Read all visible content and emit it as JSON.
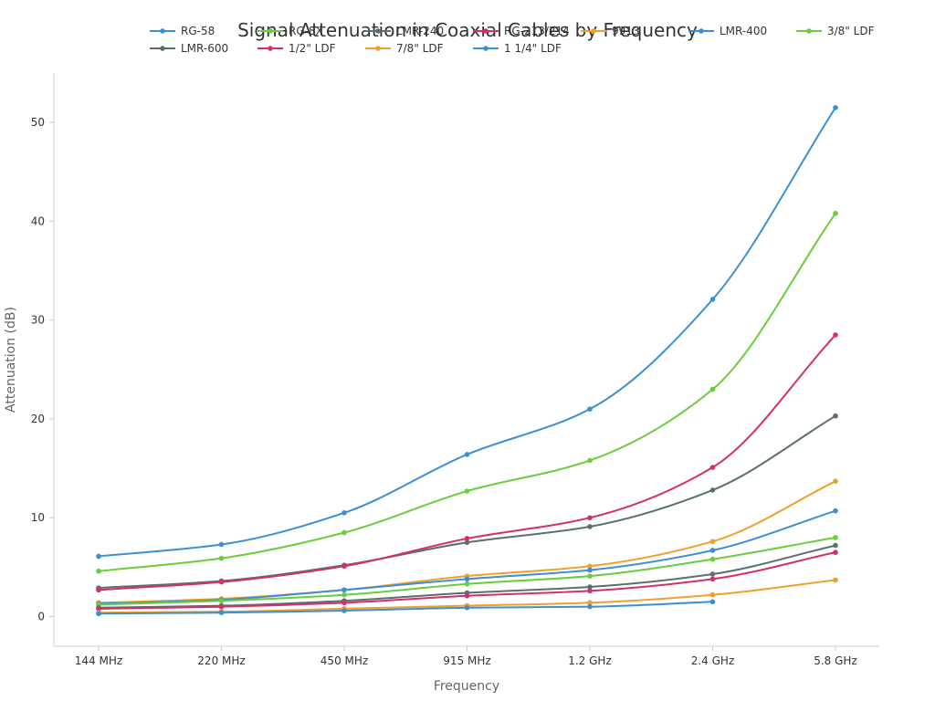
{
  "chart_data": {
    "type": "line",
    "title": "Signal Attenuation in Coaxial Cables by Frequency",
    "xlabel": "Frequency",
    "ylabel": "Attenuation (dB)",
    "categories": [
      "144 MHz",
      "220 MHz",
      "450 MHz",
      "915 MHz",
      "1.2 GHz",
      "2.4 GHz",
      "5.8 GHz"
    ],
    "ylim": [
      -3,
      55
    ],
    "yticks": [
      0,
      10,
      20,
      30,
      40,
      50
    ],
    "legend_position": "top",
    "series": [
      {
        "name": "RG-58",
        "color": "#3b8fd6",
        "values": [
          6.1,
          7.3,
          10.5,
          16.4,
          21.0,
          32.1,
          51.5
        ]
      },
      {
        "name": "RG-8X",
        "color": "#6acd3c",
        "values": [
          4.6,
          5.9,
          8.5,
          12.7,
          15.8,
          23.0,
          40.8
        ]
      },
      {
        "name": "LMR-240",
        "color": "#5b6e73",
        "values": [
          2.9,
          3.6,
          5.2,
          7.5,
          9.1,
          12.8,
          20.3
        ]
      },
      {
        "name": "RG-213/214",
        "color": "#d3306a",
        "values": [
          2.7,
          3.5,
          5.1,
          7.9,
          10.0,
          15.1,
          28.5
        ]
      },
      {
        "name": "9913",
        "color": "#f0a027",
        "values": [
          1.4,
          1.8,
          2.7,
          4.1,
          5.1,
          7.6,
          13.7
        ]
      },
      {
        "name": "LMR-400",
        "color": "#3b8fd6",
        "values": [
          1.3,
          1.7,
          2.7,
          3.8,
          4.7,
          6.7,
          10.7
        ]
      },
      {
        "name": "3/8\" LDF",
        "color": "#6acd3c",
        "values": [
          1.2,
          1.6,
          2.2,
          3.3,
          4.1,
          5.8,
          8.0
        ]
      },
      {
        "name": "LMR-600",
        "color": "#5b6e73",
        "values": [
          0.9,
          1.1,
          1.6,
          2.4,
          3.0,
          4.3,
          7.2
        ]
      },
      {
        "name": "1/2\" LDF",
        "color": "#d3306a",
        "values": [
          0.8,
          1.0,
          1.4,
          2.1,
          2.6,
          3.8,
          6.5
        ]
      },
      {
        "name": "7/8\" LDF",
        "color": "#f0a027",
        "values": [
          0.4,
          0.5,
          0.8,
          1.1,
          1.4,
          2.2,
          3.7
        ]
      },
      {
        "name": "1 1/4\" LDF",
        "color": "#3b8fd6",
        "values": [
          0.3,
          0.4,
          0.6,
          0.9,
          1.0,
          1.5,
          null
        ]
      }
    ]
  }
}
